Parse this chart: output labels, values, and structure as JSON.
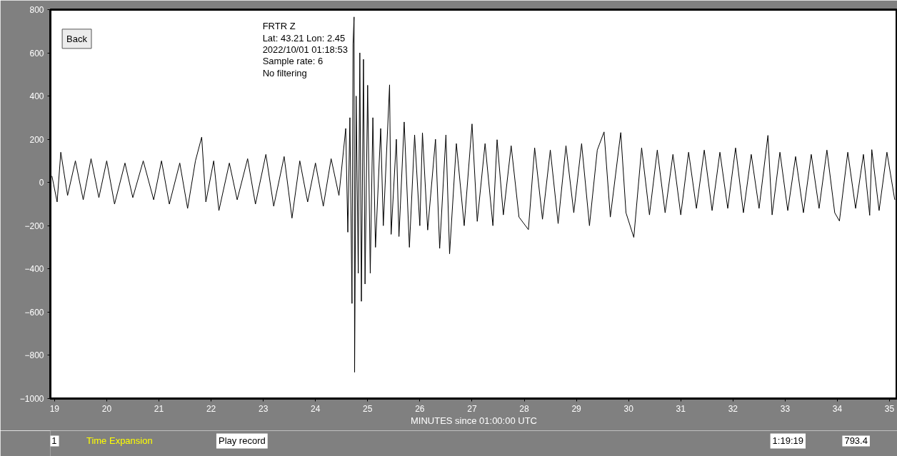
{
  "chart_data": {
    "type": "line",
    "xlabel": "MINUTES since 01:00:00 UTC",
    "annotations": [
      "FRTR  Z",
      "Lat: 43.21 Lon: 2.45",
      "2022/10/01 01:18:53",
      "Sample rate: 6",
      "No filtering",
      "Back",
      "1",
      "Time Expansion",
      "Play record",
      "1:19:19",
      "793.4"
    ],
    "xlim": [
      18.92,
      35.15
    ],
    "ylim": [
      -1000,
      800
    ],
    "xticks": [
      19,
      20,
      21,
      22,
      23,
      24,
      25,
      26,
      27,
      28,
      29,
      30,
      31,
      32,
      33,
      34,
      35
    ],
    "yticks": [
      -1000,
      -800,
      -600,
      -400,
      -200,
      0,
      200,
      400,
      600,
      800
    ],
    "grid": false,
    "marker": "none",
    "line_style": "solid",
    "series": [
      {
        "color": "#000000",
        "x": [
          18.95,
          19.05,
          19.12,
          19.25,
          19.4,
          19.55,
          19.7,
          19.85,
          20.0,
          20.15,
          20.35,
          20.5,
          20.7,
          20.9,
          21.05,
          21.2,
          21.4,
          21.55,
          21.7,
          21.82,
          21.9,
          22.05,
          22.15,
          22.35,
          22.5,
          22.7,
          22.85,
          23.05,
          23.2,
          23.4,
          23.55,
          23.7,
          23.85,
          24.0,
          24.15,
          24.3,
          24.45,
          24.58,
          24.62,
          24.66,
          24.7,
          24.72,
          24.74,
          24.75,
          24.78,
          24.82,
          24.85,
          24.88,
          24.92,
          24.95,
          25.0,
          25.05,
          25.1,
          25.15,
          25.25,
          25.3,
          25.42,
          25.45,
          25.55,
          25.6,
          25.7,
          25.8,
          25.9,
          26.0,
          26.05,
          26.15,
          26.3,
          26.38,
          26.5,
          26.57,
          26.7,
          26.85,
          27.0,
          27.1,
          27.25,
          27.4,
          27.48,
          27.6,
          27.75,
          27.9,
          28.08,
          28.2,
          28.35,
          28.5,
          28.65,
          28.8,
          28.95,
          29.1,
          29.25,
          29.4,
          29.53,
          29.65,
          29.85,
          29.95,
          30.1,
          30.25,
          30.4,
          30.55,
          30.7,
          30.85,
          31.0,
          31.15,
          31.3,
          31.45,
          31.6,
          31.75,
          31.9,
          32.05,
          32.2,
          32.35,
          32.5,
          32.67,
          32.75,
          32.9,
          33.05,
          33.2,
          33.35,
          33.5,
          33.65,
          33.8,
          33.95,
          34.04,
          34.2,
          34.35,
          34.5,
          34.62,
          34.66,
          34.8,
          34.95,
          35.1
        ],
        "values": [
          30,
          -90,
          140,
          -60,
          100,
          -80,
          110,
          -70,
          100,
          -100,
          90,
          -70,
          100,
          -80,
          100,
          -100,
          90,
          -120,
          100,
          210,
          -90,
          100,
          -130,
          90,
          -80,
          110,
          -100,
          130,
          -110,
          120,
          -165,
          100,
          -90,
          90,
          -110,
          110,
          -60,
          250,
          -230,
          300,
          -560,
          640,
          766,
          -878,
          400,
          -420,
          600,
          -550,
          570,
          -470,
          450,
          -420,
          300,
          -300,
          250,
          -200,
          452,
          -240,
          200,
          -250,
          280,
          -300,
          220,
          -200,
          230,
          -220,
          200,
          -305,
          220,
          -330,
          180,
          -200,
          271,
          -180,
          180,
          -200,
          198,
          -150,
          170,
          -160,
          -218,
          160,
          -170,
          150,
          -190,
          170,
          -140,
          180,
          -200,
          150,
          234,
          -160,
          231,
          -140,
          -254,
          160,
          -150,
          150,
          -140,
          130,
          -150,
          140,
          -120,
          150,
          -130,
          140,
          -120,
          160,
          -140,
          130,
          -120,
          218,
          -150,
          140,
          -130,
          120,
          -140,
          130,
          -120,
          150,
          -140,
          -178,
          140,
          -120,
          130,
          -152,
          152,
          -130,
          140,
          -80
        ]
      }
    ]
  }
}
